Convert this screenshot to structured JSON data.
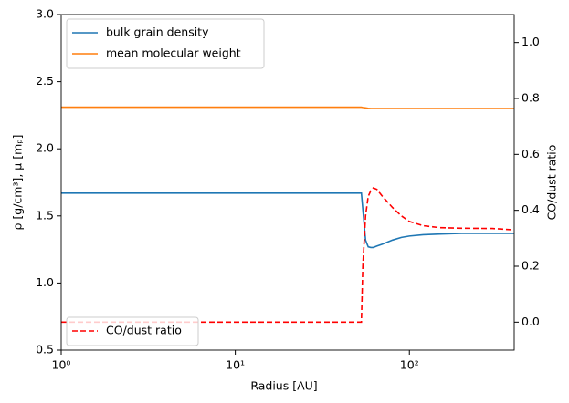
{
  "chart_data": {
    "type": "line",
    "xlabel": "Radius [AU]",
    "ylabel": "ρ [g/cm³], μ [mₚ]",
    "y2label": "CO/dust ratio",
    "xscale": "log",
    "x": [
      1,
      10,
      50,
      53,
      54,
      56,
      58,
      60,
      62,
      65,
      70,
      80,
      90,
      100,
      120,
      150,
      200,
      300,
      400
    ],
    "xlim": [
      1,
      400
    ],
    "xticks": [
      {
        "value": 1,
        "label": "10⁰"
      },
      {
        "value": 10,
        "label": "10¹"
      },
      {
        "value": 100,
        "label": "10²"
      }
    ],
    "ylim": [
      0.5,
      3.0
    ],
    "yticks": [
      0.5,
      {
        "value": 1,
        "label": "1.0"
      },
      1.5,
      {
        "value": 2,
        "label": "2.0"
      },
      2.5,
      {
        "value": 3,
        "label": "3.0"
      }
    ],
    "y2lim": [
      -0.1,
      1.1
    ],
    "y2ticks": [
      {
        "value": 0,
        "label": "0.0"
      },
      0.2,
      0.4,
      0.6,
      0.8,
      {
        "value": 1,
        "label": "1.0"
      }
    ],
    "legend": "upper left",
    "legend2": "lower left",
    "series": [
      {
        "name": "bulk grain density",
        "color": "#1f77b4",
        "dash": false,
        "values": [
          1.67,
          1.67,
          1.67,
          1.67,
          1.55,
          1.32,
          1.27,
          1.265,
          1.265,
          1.275,
          1.29,
          1.32,
          1.34,
          1.35,
          1.36,
          1.365,
          1.37,
          1.37,
          1.37
        ]
      },
      {
        "name": "mean molecular weight",
        "color": "#ff7f0e",
        "dash": false,
        "values": [
          2.31,
          2.31,
          2.31,
          2.31,
          2.308,
          2.305,
          2.302,
          2.3,
          2.3,
          2.3,
          2.3,
          2.3,
          2.3,
          2.3,
          2.3,
          2.3,
          2.3,
          2.3,
          2.3
        ]
      },
      {
        "name": "CO/dust ratio",
        "color": "#ff0000",
        "dash": true,
        "axis": "y2",
        "values": [
          0,
          0,
          0,
          0,
          0.2,
          0.38,
          0.45,
          0.47,
          0.48,
          0.475,
          0.45,
          0.41,
          0.38,
          0.36,
          0.345,
          0.338,
          0.336,
          0.335,
          0.33
        ]
      }
    ]
  }
}
